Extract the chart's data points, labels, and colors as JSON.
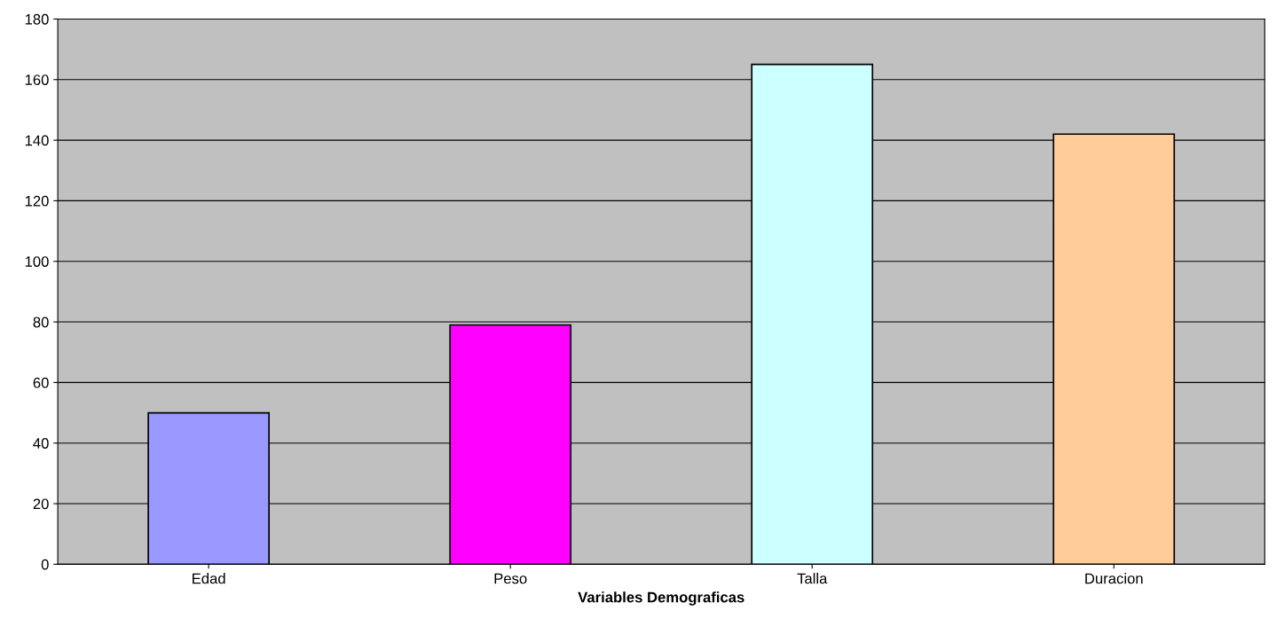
{
  "chart_data": {
    "type": "bar",
    "xlabel": "Variables Demograficas",
    "categories": [
      "Edad",
      "Peso",
      "Talla",
      "Duracion"
    ],
    "values": [
      50,
      79,
      165,
      142
    ],
    "colors": [
      "#9999ff",
      "#ff00ff",
      "#ccffff",
      "#ffcc99"
    ],
    "ylim": [
      0,
      180
    ],
    "yticks": [
      0,
      20,
      40,
      60,
      80,
      100,
      120,
      140,
      160,
      180
    ],
    "grid": "y"
  }
}
